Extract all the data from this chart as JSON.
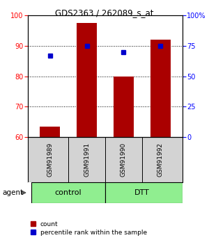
{
  "title": "GDS2363 / 262089_s_at",
  "samples": [
    "GSM91989",
    "GSM91991",
    "GSM91990",
    "GSM91992"
  ],
  "bar_values": [
    63.5,
    97.5,
    80.0,
    92.0
  ],
  "percentile_values": [
    67,
    75,
    70,
    75
  ],
  "ylim_left": [
    60,
    100
  ],
  "ylim_right": [
    0,
    100
  ],
  "yticks_left": [
    60,
    70,
    80,
    90,
    100
  ],
  "yticks_right": [
    0,
    25,
    50,
    75,
    100
  ],
  "ytick_right_labels": [
    "0",
    "25",
    "50",
    "75",
    "100%"
  ],
  "bar_color": "#AA0000",
  "percentile_color": "#0000CC",
  "bar_width": 0.55,
  "legend_count_label": "count",
  "legend_percentile_label": "percentile rank within the sample",
  "background_color": "#ffffff",
  "sample_bg_color": "#D3D3D3",
  "group_color": "#90EE90",
  "group_labels": [
    "control",
    "DTT"
  ],
  "group_centers": [
    0.5,
    2.5
  ],
  "grid_yticks": [
    70,
    80,
    90
  ]
}
